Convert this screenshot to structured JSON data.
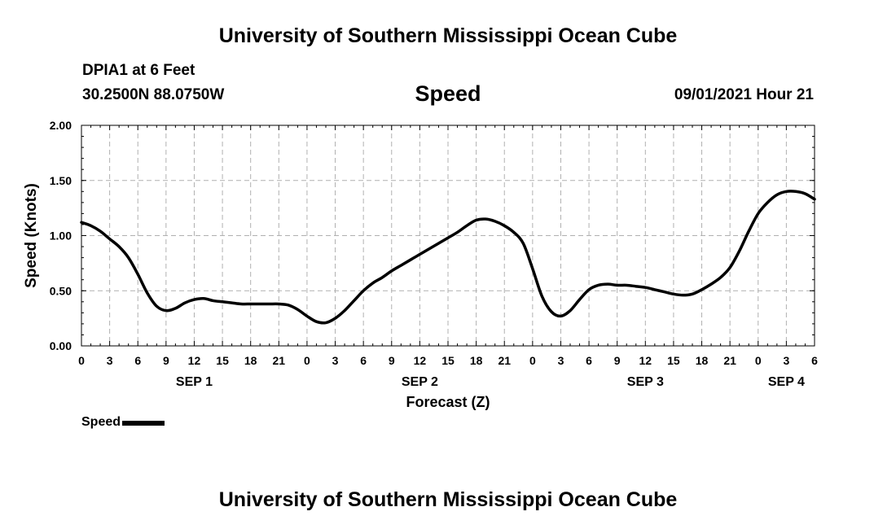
{
  "header": {
    "title": "University of Southern Mississippi Ocean Cube",
    "station": "DPIA1 at 6 Feet",
    "coords": "30.2500N  88.0750W",
    "timestamp": "09/01/2021 Hour 21"
  },
  "footer": {
    "title": "University of Southern Mississippi Ocean Cube"
  },
  "colors": {
    "line": "#000000",
    "grid": "#b0b0b0",
    "background": "#ffffff"
  },
  "chart_data": {
    "type": "line",
    "title": "Speed",
    "xlabel": "Forecast (Z)",
    "ylabel": "Speed (Knots)",
    "ylim": [
      0,
      2
    ],
    "yticks": [
      "0.00",
      "0.50",
      "1.00",
      "1.50",
      "2.00"
    ],
    "xlim": [
      0,
      78
    ],
    "xtick_labels": [
      "0",
      "3",
      "6",
      "9",
      "12",
      "15",
      "18",
      "21",
      "0",
      "3",
      "6",
      "9",
      "12",
      "15",
      "18",
      "21",
      "0",
      "3",
      "6",
      "9",
      "12",
      "15",
      "18",
      "21",
      "0",
      "3",
      "6"
    ],
    "date_labels": [
      {
        "label": "SEP 1",
        "hour": 12
      },
      {
        "label": "SEP 2",
        "hour": 36
      },
      {
        "label": "SEP 3",
        "hour": 60
      },
      {
        "label": "SEP 4",
        "hour": 75
      }
    ],
    "grid": true,
    "legend_position": "bottom-left",
    "series": [
      {
        "name": "Speed",
        "x": [
          0,
          1,
          2,
          3,
          4,
          5,
          6,
          7,
          8,
          9,
          10,
          11,
          12,
          13,
          14,
          15,
          16,
          17,
          18,
          19,
          20,
          21,
          22,
          23,
          24,
          25,
          26,
          27,
          28,
          29,
          30,
          31,
          32,
          33,
          34,
          35,
          36,
          37,
          38,
          39,
          40,
          41,
          42,
          43,
          44,
          45,
          46,
          47,
          48,
          49,
          50,
          51,
          52,
          53,
          54,
          55,
          56,
          57,
          58,
          59,
          60,
          61,
          62,
          63,
          64,
          65,
          66,
          67,
          68,
          69,
          70,
          71,
          72,
          73,
          74,
          75,
          76,
          77,
          78
        ],
        "y": [
          1.12,
          1.09,
          1.04,
          0.97,
          0.9,
          0.8,
          0.65,
          0.48,
          0.36,
          0.32,
          0.34,
          0.39,
          0.42,
          0.43,
          0.41,
          0.4,
          0.39,
          0.38,
          0.38,
          0.38,
          0.38,
          0.38,
          0.37,
          0.33,
          0.27,
          0.22,
          0.21,
          0.25,
          0.32,
          0.41,
          0.5,
          0.57,
          0.62,
          0.68,
          0.73,
          0.78,
          0.83,
          0.88,
          0.93,
          0.98,
          1.03,
          1.09,
          1.14,
          1.15,
          1.13,
          1.09,
          1.03,
          0.93,
          0.7,
          0.45,
          0.31,
          0.27,
          0.32,
          0.42,
          0.51,
          0.55,
          0.56,
          0.55,
          0.55,
          0.54,
          0.53,
          0.51,
          0.49,
          0.47,
          0.46,
          0.47,
          0.51,
          0.56,
          0.62,
          0.71,
          0.86,
          1.04,
          1.2,
          1.3,
          1.37,
          1.4,
          1.4,
          1.38,
          1.33
        ]
      }
    ]
  }
}
